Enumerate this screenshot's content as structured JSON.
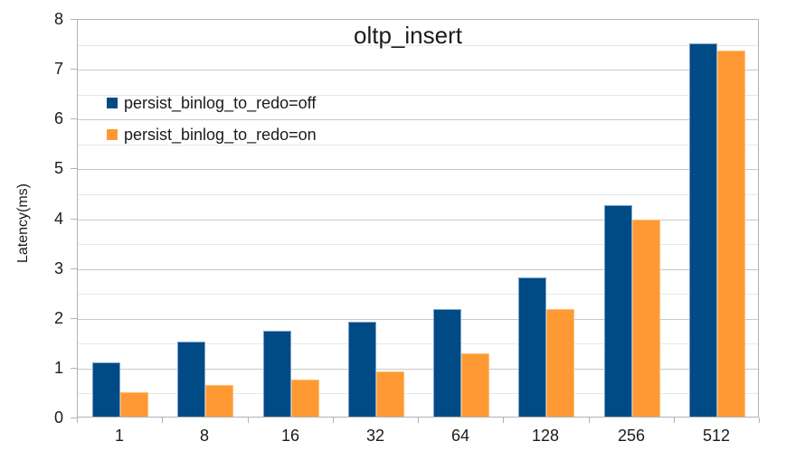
{
  "chart_data": {
    "type": "bar",
    "title": "oltp_insert",
    "xlabel": "",
    "ylabel": "Latency(ms)",
    "categories": [
      "1",
      "8",
      "16",
      "32",
      "64",
      "128",
      "256",
      "512"
    ],
    "series": [
      {
        "name": "persist_binlog_to_redo=off",
        "color": "#004a86",
        "values": [
          1.08,
          1.5,
          1.72,
          1.9,
          2.15,
          2.8,
          4.25,
          7.5
        ]
      },
      {
        "name": "persist_binlog_to_redo=on",
        "color": "#ff9933",
        "values": [
          0.49,
          0.63,
          0.75,
          0.91,
          1.27,
          2.15,
          3.95,
          7.35
        ]
      }
    ],
    "ylim": [
      0,
      8
    ],
    "y_major_step": 1,
    "y_minor_step": 0.5,
    "y_tick_labels": [
      "0",
      "1",
      "2",
      "3",
      "4",
      "5",
      "6",
      "7",
      "8"
    ],
    "grid": true,
    "legend_position": "inside-top-left"
  },
  "colors": {
    "series_off": "#004a86",
    "series_on": "#ff9933",
    "major_gridline": "#c9c9c9",
    "minor_gridline": "#e8e8e8",
    "axis_frame": "#b2b2b2",
    "text": "#1b1b1b",
    "background": "#ffffff"
  }
}
